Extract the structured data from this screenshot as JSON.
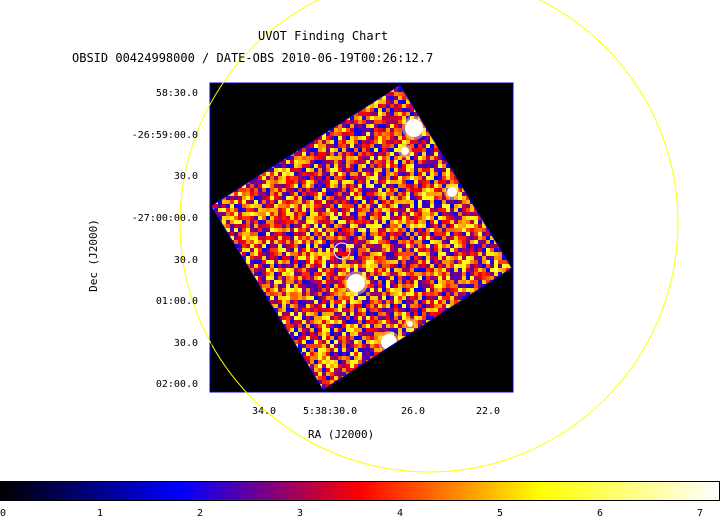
{
  "chart_data": {
    "type": "heatmap",
    "title": "UVOT Finding Chart",
    "subtitle": "OBSID 00424998000 / DATE-OBS 2010-06-19T00:26:12.7",
    "xlabel": "RA (J2000)",
    "ylabel": "Dec (J2000)",
    "x_ticks": [
      "34.0",
      "5:38:30.0",
      "26.0",
      "22.0"
    ],
    "y_ticks": [
      "58:30.0",
      "-26:59:00.0",
      "30.0",
      "-27:00:00.0",
      "30.0",
      "01:00.0",
      "30.0",
      "02:00.0"
    ],
    "colorbar": {
      "min": 0,
      "max": 7,
      "ticks": [
        "0",
        "1",
        "2",
        "3",
        "4",
        "5",
        "6",
        "7"
      ],
      "colormap": [
        "#000000",
        "#0000ff",
        "#ff0000",
        "#ffff00",
        "#ffffff"
      ]
    },
    "overlays": {
      "outer_circle_color": "#ffff00",
      "target_circle_color": "#ffffff"
    },
    "bright_sources": 6
  }
}
